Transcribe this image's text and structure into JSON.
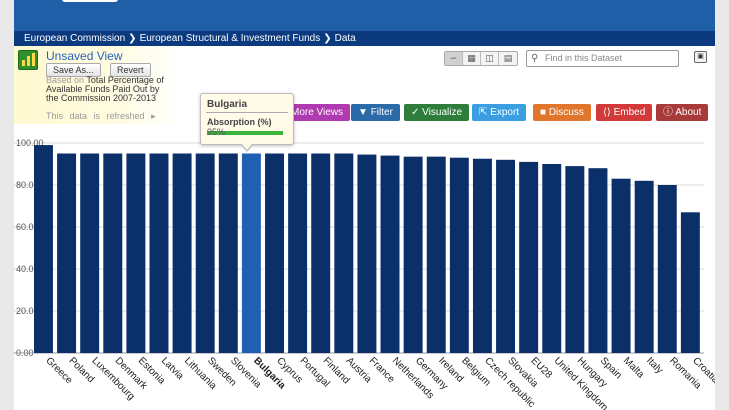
{
  "breadcrumb": [
    "European Commission",
    "European Structural & Investment Funds",
    "Data"
  ],
  "dataset": {
    "title": "Unsaved View",
    "save_as": "Save As...",
    "revert": "Revert",
    "based_on": "Based on",
    "description": "Total Percentage of Available Funds Paid Out by the Commission 2007-2013",
    "refresh_note": "This data is refreshed"
  },
  "search": {
    "placeholder": "Find in this Dataset"
  },
  "actions": [
    {
      "label": "More Views",
      "color": "#b03ab0"
    },
    {
      "label": "Filter",
      "color": "#2a6aa8"
    },
    {
      "label": "Visualize",
      "color": "#2f7d3a"
    },
    {
      "label": "Export",
      "color": "#3a9ee0"
    },
    {
      "label": "Discuss",
      "color": "#e0762b"
    },
    {
      "label": "Embed",
      "color": "#d23a3a"
    },
    {
      "label": "About",
      "color": "#a83a3a"
    }
  ],
  "tooltip": {
    "name": "Bulgaria",
    "label": "Absorption (%)",
    "value": "95%"
  },
  "chart_data": {
    "type": "bar",
    "categories": [
      "Greece",
      "Poland",
      "Luxembourg",
      "Denmark",
      "Estonia",
      "Latvia",
      "Lithuania",
      "Sweden",
      "Slovenia",
      "Bulgaria",
      "Cyprus",
      "Portugal",
      "Finland",
      "Austria",
      "France",
      "Netherlands",
      "Germany",
      "Ireland",
      "Belgium",
      "Czech republic",
      "Slovakia",
      "EU28",
      "United Kingdom",
      "Hungary",
      "Spain",
      "Malta",
      "Italy",
      "Romania",
      "Croatia"
    ],
    "values": [
      99,
      95,
      95,
      95,
      95,
      95,
      95,
      95,
      95,
      95,
      95,
      95,
      95,
      95,
      94.5,
      94,
      93.5,
      93.5,
      93,
      92.5,
      92,
      91,
      90,
      89,
      88,
      83,
      82,
      80,
      67
    ],
    "highlight": "Bulgaria",
    "ylim": [
      0,
      100
    ],
    "yticks": [
      "0.00",
      "20.00",
      "40.00",
      "60.00",
      "80.00",
      "100.00"
    ],
    "bar_color": "#0b2f69",
    "highlight_color": "#1f5fb4",
    "grid": true
  }
}
